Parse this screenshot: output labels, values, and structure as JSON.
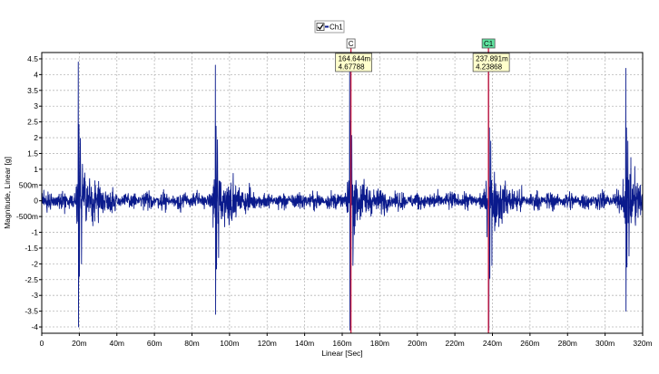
{
  "legend": {
    "label": "Ch1",
    "checked": true
  },
  "colors": {
    "series": "#0a1a8c",
    "cursor": "#cc2244",
    "cursor_box": "#ffffcc",
    "cursor_tag_c1": "#5fe3a0",
    "grid": "#b8b8b8"
  },
  "chart_data": {
    "type": "line",
    "xlabel": "Linear [Sec]",
    "ylabel": "Magnitude, Linear [g]",
    "xlim": [
      0,
      320
    ],
    "ylim": [
      -4.2,
      4.7
    ],
    "grid": true,
    "legend_position": "top-center",
    "x_unit": "ms",
    "x_ticks": [
      0,
      20,
      40,
      60,
      80,
      100,
      120,
      140,
      160,
      180,
      200,
      220,
      240,
      260,
      280,
      300,
      320
    ],
    "x_tick_labels": [
      "0",
      "20m",
      "40m",
      "60m",
      "80m",
      "100m",
      "120m",
      "140m",
      "160m",
      "180m",
      "200m",
      "220m",
      "240m",
      "260m",
      "280m",
      "300m",
      "320m"
    ],
    "y_ticks": [
      4.5,
      4,
      3.5,
      3,
      2.5,
      2,
      1.5,
      1,
      0.5,
      0,
      -0.5,
      -1,
      -1.5,
      -2,
      -2.5,
      -3,
      -3.5,
      -4
    ],
    "y_tick_labels": [
      "4.5",
      "4",
      "3.5",
      "3",
      "2.5",
      "2",
      "1.5",
      "1",
      "500m",
      "0",
      "-500m",
      "-1",
      "-1.5",
      "-2",
      "-2.5",
      "-3",
      "-3.5",
      "-4"
    ],
    "series": [
      {
        "name": "Ch1",
        "baseline_noise_amplitude": 0.3,
        "bursts": [
          {
            "x": 19.5,
            "peak": 4.4,
            "trough": -4.0
          },
          {
            "x": 92.5,
            "peak": 4.3,
            "trough": -3.6
          },
          {
            "x": 164.0,
            "peak": 4.6,
            "trough": -4.1
          },
          {
            "x": 238.0,
            "peak": 4.2,
            "trough": -4.1
          },
          {
            "x": 311.0,
            "peak": 4.2,
            "trough": -3.5
          }
        ]
      }
    ],
    "cursors": [
      {
        "label": "C",
        "x_text": "164.644m",
        "y_text": "4.67788",
        "x": 164.644
      },
      {
        "label": "C1",
        "x_text": "237.891m",
        "y_text": "4.23868",
        "x": 237.891
      }
    ]
  }
}
